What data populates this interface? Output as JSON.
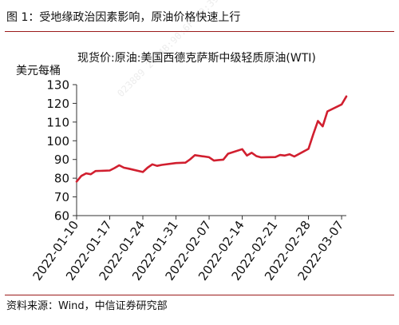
{
  "figure": {
    "label": "图 1：",
    "caption": "受地缘政治因素影响，原油价格快速上行"
  },
  "source": "资料来源：Wind，中信证券研究部",
  "chart_data": {
    "type": "line",
    "title": "现货价:原油:美国西德克萨斯中级轻质原油(WTI)",
    "ylabel": "美元每桶",
    "xlabel": "",
    "ylim": [
      60,
      130
    ],
    "yticks": [
      60,
      70,
      80,
      90,
      100,
      110,
      120,
      130
    ],
    "xlim": [
      "2022-01-10",
      "2022-03-08"
    ],
    "xticks": [
      "2022-01-10",
      "2022-01-17",
      "2022-01-24",
      "2022-01-31",
      "2022-02-07",
      "2022-02-14",
      "2022-02-21",
      "2022-02-28",
      "2022-03-07"
    ],
    "grid": false,
    "legend": "none",
    "line_color": "#d11f2f",
    "series": [
      {
        "x": [
          "2022-01-10",
          "2022-01-11",
          "2022-01-12",
          "2022-01-13",
          "2022-01-14",
          "2022-01-17",
          "2022-01-18",
          "2022-01-19",
          "2022-01-20",
          "2022-01-21",
          "2022-01-24",
          "2022-01-25",
          "2022-01-26",
          "2022-01-27",
          "2022-01-28",
          "2022-01-31",
          "2022-02-01",
          "2022-02-02",
          "2022-02-03",
          "2022-02-04",
          "2022-02-07",
          "2022-02-08",
          "2022-02-09",
          "2022-02-10",
          "2022-02-11",
          "2022-02-14",
          "2022-02-15",
          "2022-02-16",
          "2022-02-17",
          "2022-02-18",
          "2022-02-21",
          "2022-02-22",
          "2022-02-23",
          "2022-02-24",
          "2022-02-25",
          "2022-02-28",
          "2022-03-01",
          "2022-03-02",
          "2022-03-03",
          "2022-03-04",
          "2022-03-07",
          "2022-03-08"
        ],
        "values": [
          78.2,
          81.2,
          82.6,
          82.1,
          83.8,
          84.1,
          85.4,
          86.9,
          85.6,
          85.1,
          83.3,
          85.6,
          87.4,
          86.6,
          87.1,
          88.1,
          88.2,
          88.3,
          90.1,
          92.3,
          91.2,
          89.4,
          89.7,
          89.9,
          93.1,
          95.5,
          92.1,
          93.6,
          91.8,
          91.1,
          91.3,
          92.4,
          92.1,
          92.8,
          91.6,
          95.7,
          103.4,
          110.6,
          107.7,
          115.7,
          119.4,
          123.7
        ]
      }
    ]
  },
  "watermark": "023889 2C:4B:90:6F:40:39"
}
